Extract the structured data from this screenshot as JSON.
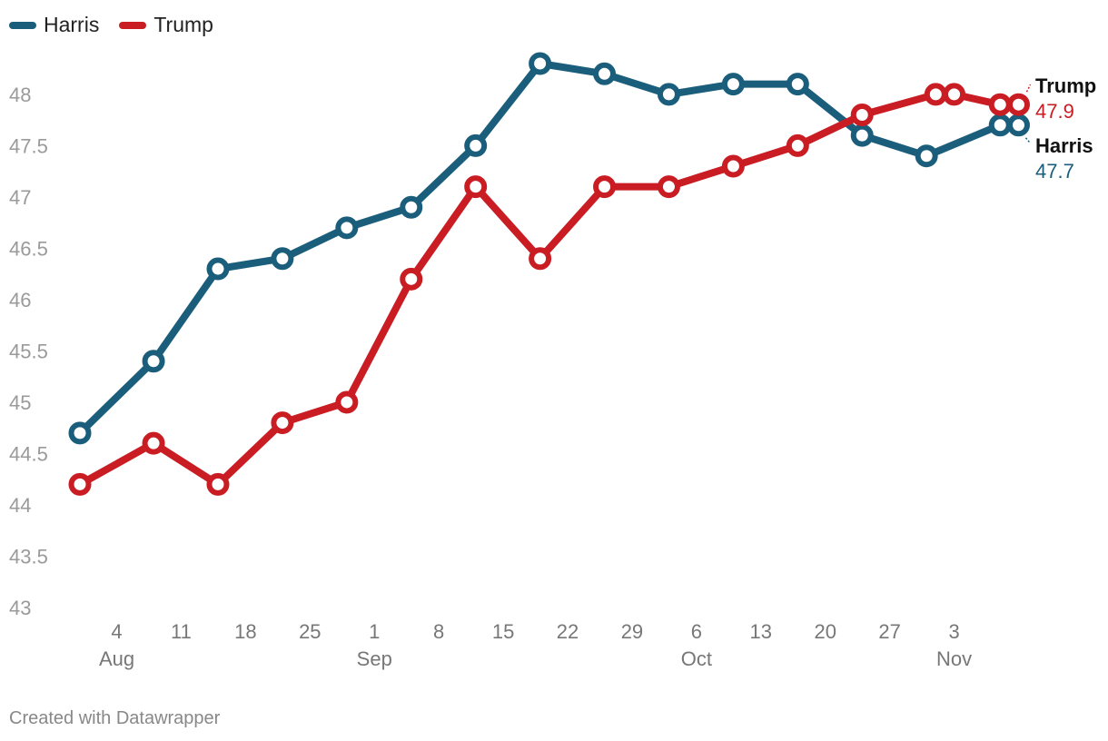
{
  "chart_data": {
    "type": "line",
    "legend_position": "top-left",
    "ylim": [
      43,
      48.5
    ],
    "y_ticks": [
      43,
      43.5,
      44,
      44.5,
      45,
      45.5,
      46,
      46.5,
      47,
      47.5,
      48
    ],
    "y_tick_labels": [
      "43",
      "43.5",
      "44",
      "44.5",
      "45",
      "45.5",
      "46",
      "46.5",
      "47",
      "47.5",
      "48"
    ],
    "x_ticks": [
      {
        "day": 4,
        "label": "4",
        "month": "Aug"
      },
      {
        "day": 11,
        "label": "11",
        "month": ""
      },
      {
        "day": 18,
        "label": "18",
        "month": ""
      },
      {
        "day": 25,
        "label": "25",
        "month": ""
      },
      {
        "day": 32,
        "label": "1",
        "month": "Sep"
      },
      {
        "day": 39,
        "label": "8",
        "month": ""
      },
      {
        "day": 46,
        "label": "15",
        "month": ""
      },
      {
        "day": 53,
        "label": "22",
        "month": ""
      },
      {
        "day": 60,
        "label": "29",
        "month": ""
      },
      {
        "day": 67,
        "label": "6",
        "month": "Oct"
      },
      {
        "day": 74,
        "label": "13",
        "month": ""
      },
      {
        "day": 81,
        "label": "20",
        "month": ""
      },
      {
        "day": 88,
        "label": "27",
        "month": ""
      },
      {
        "day": 95,
        "label": "3",
        "month": "Nov"
      }
    ],
    "x_domain": [
      -1,
      107
    ],
    "series": [
      {
        "name": "Harris",
        "color": "#1b5e7b",
        "end_label": "Harris",
        "end_value": "47.7",
        "days": [
          0,
          8,
          15,
          22,
          29,
          36,
          43,
          50,
          57,
          64,
          71,
          78,
          85,
          92,
          100,
          102
        ],
        "values": [
          44.7,
          45.4,
          46.3,
          46.4,
          46.7,
          46.9,
          47.5,
          48.3,
          48.2,
          48.0,
          48.1,
          48.1,
          47.6,
          47.4,
          47.7,
          47.7
        ]
      },
      {
        "name": "Trump",
        "color": "#c91d23",
        "end_label": "Trump",
        "end_value": "47.9",
        "days": [
          0,
          8,
          15,
          22,
          29,
          36,
          43,
          50,
          57,
          64,
          71,
          78,
          85,
          93,
          95,
          100,
          102
        ],
        "values": [
          44.2,
          44.6,
          44.2,
          44.8,
          45.0,
          46.2,
          47.1,
          46.4,
          47.1,
          47.1,
          47.3,
          47.5,
          47.8,
          48.0,
          48.0,
          47.9,
          47.9
        ]
      }
    ]
  },
  "legend": {
    "harris_label": "Harris",
    "trump_label": "Trump",
    "harris_color": "#1b5e7b",
    "trump_color": "#c91d23"
  },
  "footer": {
    "credit": "Created with Datawrapper"
  }
}
